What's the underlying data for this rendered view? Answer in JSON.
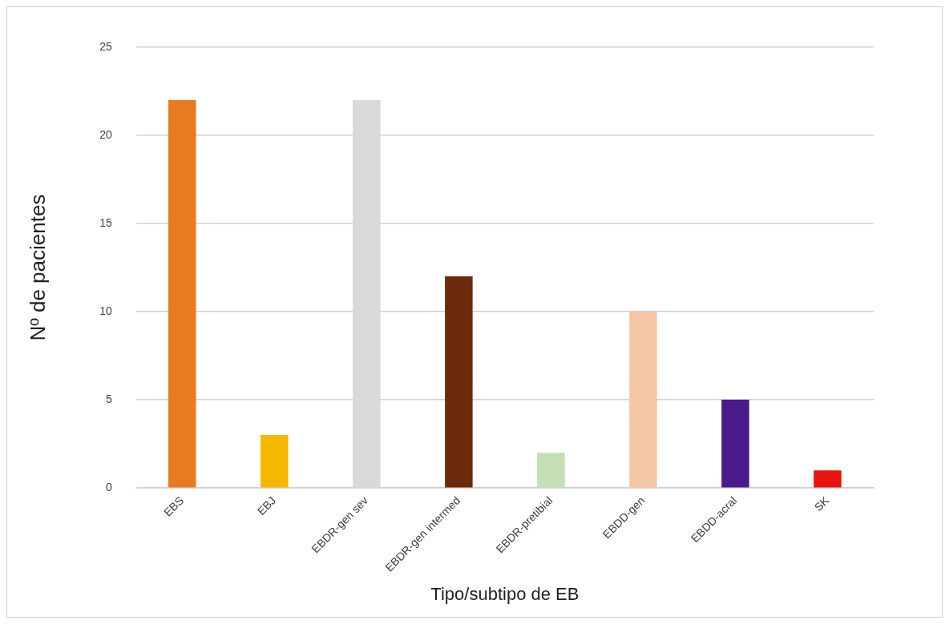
{
  "chart_data": {
    "type": "bar",
    "xlabel": "Tipo/subtipo de EB",
    "ylabel": "Nº de pacientes",
    "categories": [
      "EBS",
      "EBJ",
      "EBDR-gen sev",
      "EBDR-gen intermed",
      "EBDR-pretibial",
      "EBDD-gen",
      "EBDD-acral",
      "SK"
    ],
    "values": [
      22,
      3,
      22,
      12,
      2,
      10,
      5,
      1
    ],
    "colors": [
      "#e87a22",
      "#f5b800",
      "#d9d9d9",
      "#6b2a0c",
      "#c5dfb5",
      "#f4c6a6",
      "#4b1a8a",
      "#e8120f"
    ],
    "ylim": [
      0,
      25
    ],
    "yticks": [
      0,
      5,
      10,
      15,
      20,
      25
    ],
    "grid": "y",
    "legend": false
  }
}
